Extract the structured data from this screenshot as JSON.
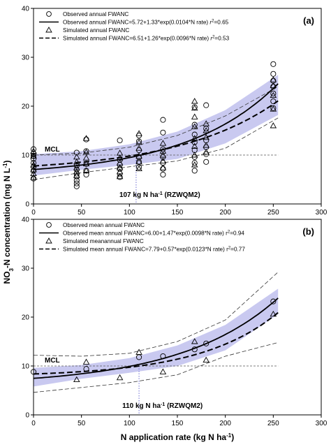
{
  "figure": {
    "ylabel_main": "NO",
    "ylabel_sub": "3",
    "ylabel_rest": "-N concentration (mg N L",
    "ylabel_sup": "-1",
    "ylabel_end": ")",
    "xlabel_main": "N application rate (kg N ha",
    "xlabel_sup": "-1",
    "xlabel_end": ")"
  },
  "chart_data": [
    {
      "type": "scatter",
      "panel_label": "(a)",
      "xlim": [
        0,
        300
      ],
      "ylim": [
        0,
        40
      ],
      "xticks": [
        0,
        50,
        100,
        150,
        200,
        250,
        300
      ],
      "yticks": [
        0,
        10,
        20,
        30,
        40
      ],
      "grid": false,
      "legend_position": "top-left",
      "legend": [
        {
          "symbol": "circle",
          "label": "Observed annual FWANC"
        },
        {
          "symbol": "solid-line",
          "label": "Observed annual FWANC=5.72+1.33*exp(0.0104*N rate) ",
          "r2": "=0.65"
        },
        {
          "symbol": "triangle",
          "label": "Simulated annual FWANC"
        },
        {
          "symbol": "dashed-line",
          "label": "Simulated annual FWANC=6.51+1.26*exp(0.0096*N rate) ",
          "r2": "=0.53"
        }
      ],
      "mcl": {
        "label": "MCL",
        "y": 10
      },
      "threshold": {
        "x": 107,
        "label_main": "107 kg N ha",
        "label_sup": "-1",
        "label_end": " (RZWQM2)"
      },
      "observed": [
        [
          0,
          5.2
        ],
        [
          0,
          6.8
        ],
        [
          0,
          7.6
        ],
        [
          0,
          8.4
        ],
        [
          0,
          9.2
        ],
        [
          0,
          9.8
        ],
        [
          0,
          10.3
        ],
        [
          0,
          11.2
        ],
        [
          45,
          3.6
        ],
        [
          45,
          4.2
        ],
        [
          45,
          4.8
        ],
        [
          45,
          5.6
        ],
        [
          45,
          6.2
        ],
        [
          45,
          7.0
        ],
        [
          45,
          7.8
        ],
        [
          45,
          10.5
        ],
        [
          55,
          6.0
        ],
        [
          55,
          6.8
        ],
        [
          55,
          8.2
        ],
        [
          55,
          10.8
        ],
        [
          55,
          13.2
        ],
        [
          90,
          5.5
        ],
        [
          90,
          6.2
        ],
        [
          90,
          7.2
        ],
        [
          90,
          8.0
        ],
        [
          90,
          9.0
        ],
        [
          90,
          13.0
        ],
        [
          110,
          7.5
        ],
        [
          110,
          8.6
        ],
        [
          110,
          9.5
        ],
        [
          110,
          11.0
        ],
        [
          110,
          12.8
        ],
        [
          110,
          14.0
        ],
        [
          135,
          6.0
        ],
        [
          135,
          7.2
        ],
        [
          135,
          8.4
        ],
        [
          135,
          9.6
        ],
        [
          135,
          11.2
        ],
        [
          135,
          14.6
        ],
        [
          135,
          17.2
        ],
        [
          168,
          6.8
        ],
        [
          168,
          8.4
        ],
        [
          168,
          9.6
        ],
        [
          168,
          11.0
        ],
        [
          168,
          12.6
        ],
        [
          168,
          14.2
        ],
        [
          168,
          16.2
        ],
        [
          168,
          19.8
        ],
        [
          180,
          8.6
        ],
        [
          180,
          10.2
        ],
        [
          180,
          11.6
        ],
        [
          180,
          13.0
        ],
        [
          180,
          15.4
        ],
        [
          180,
          20.2
        ],
        [
          250,
          19.6
        ],
        [
          250,
          21.0
        ],
        [
          250,
          22.6
        ],
        [
          250,
          24.0
        ],
        [
          250,
          25.2
        ],
        [
          250,
          26.6
        ],
        [
          250,
          28.6
        ]
      ],
      "simulated": [
        [
          0,
          5.4
        ],
        [
          0,
          6.2
        ],
        [
          0,
          7.0
        ],
        [
          0,
          8.0
        ],
        [
          0,
          9.8
        ],
        [
          0,
          10.8
        ],
        [
          45,
          5.8
        ],
        [
          45,
          6.6
        ],
        [
          45,
          7.4
        ],
        [
          45,
          8.6
        ],
        [
          45,
          9.6
        ],
        [
          55,
          6.8
        ],
        [
          55,
          8.2
        ],
        [
          55,
          9.4
        ],
        [
          55,
          10.6
        ],
        [
          55,
          13.4
        ],
        [
          90,
          5.6
        ],
        [
          90,
          6.6
        ],
        [
          90,
          7.4
        ],
        [
          90,
          8.4
        ],
        [
          90,
          9.4
        ],
        [
          90,
          10.4
        ],
        [
          110,
          7.2
        ],
        [
          110,
          8.6
        ],
        [
          110,
          9.8
        ],
        [
          110,
          11.4
        ],
        [
          110,
          12.6
        ],
        [
          110,
          14.4
        ],
        [
          135,
          7.4
        ],
        [
          135,
          8.8
        ],
        [
          135,
          10.0
        ],
        [
          135,
          10.8
        ],
        [
          135,
          12.4
        ],
        [
          168,
          8.0
        ],
        [
          168,
          10.0
        ],
        [
          168,
          11.8
        ],
        [
          168,
          13.4
        ],
        [
          168,
          15.8
        ],
        [
          168,
          17.8
        ],
        [
          168,
          19.6
        ],
        [
          168,
          21.0
        ],
        [
          180,
          10.6
        ],
        [
          180,
          12.0
        ],
        [
          180,
          13.6
        ],
        [
          180,
          15.0
        ],
        [
          180,
          16.4
        ],
        [
          250,
          16.0
        ],
        [
          250,
          19.4
        ],
        [
          250,
          22.2
        ],
        [
          250,
          24.2
        ],
        [
          250,
          25.4
        ]
      ],
      "observed_fit": {
        "a": 5.72,
        "b": 1.33,
        "k": 0.0104
      },
      "simulated_fit": {
        "a": 6.51,
        "b": 1.26,
        "k": 0.0096
      },
      "band_x": [
        0,
        50,
        100,
        150,
        200,
        255
      ],
      "band_upper": [
        10.2,
        10.8,
        12.2,
        14.8,
        19.2,
        26.4
      ],
      "band_lower": [
        5.8,
        7.0,
        8.0,
        9.2,
        12.4,
        18.2
      ],
      "outer_upper": [
        10.0,
        10.4,
        11.6,
        14.0,
        18.0,
        24.0
      ],
      "outer_lower": [
        5.0,
        6.4,
        7.6,
        8.8,
        11.4,
        17.6
      ]
    },
    {
      "type": "scatter",
      "panel_label": "(b)",
      "xlim": [
        0,
        300
      ],
      "ylim": [
        0,
        40
      ],
      "xticks": [
        0,
        50,
        100,
        150,
        200,
        250,
        300
      ],
      "yticks": [
        0,
        10,
        20,
        30,
        40
      ],
      "grid": false,
      "legend_position": "top-left",
      "legend": [
        {
          "symbol": "circle",
          "label": "Observed mean annual FWANC"
        },
        {
          "symbol": "solid-line",
          "label": "Observed mean annual FWANC=6.00+1.47*exp(0.0098*N rate) r",
          "r2": "=0.94"
        },
        {
          "symbol": "triangle",
          "label": "Simulated meanannual FWANC"
        },
        {
          "symbol": "dashed-line",
          "label": "Simulated mean annual FWANC=7.79+0.57*exp(0.0123*N rate) r",
          "r2": "=0.77"
        }
      ],
      "mcl": {
        "label": "MCL",
        "y": 10
      },
      "threshold": {
        "x": 110,
        "label_main": "110 kg N ha",
        "label_sup": "-1",
        "label_end": " (RZWQM2)"
      },
      "observed": [
        [
          0,
          8.8
        ],
        [
          55,
          9.4
        ],
        [
          110,
          11.8
        ],
        [
          135,
          12.0
        ],
        [
          168,
          13.4
        ],
        [
          180,
          14.6
        ],
        [
          250,
          23.2
        ]
      ],
      "simulated": [
        [
          45,
          7.2
        ],
        [
          55,
          10.8
        ],
        [
          90,
          7.6
        ],
        [
          110,
          12.8
        ],
        [
          135,
          8.8
        ],
        [
          168,
          15.0
        ],
        [
          180,
          11.2
        ],
        [
          250,
          20.6
        ]
      ],
      "observed_fit": {
        "a": 6.0,
        "b": 1.47,
        "k": 0.0098
      },
      "simulated_fit": {
        "a": 7.79,
        "b": 0.57,
        "k": 0.0123
      },
      "band_x": [
        0,
        50,
        100,
        150,
        200,
        255
      ],
      "band_upper": [
        9.6,
        10.2,
        11.6,
        14.2,
        18.4,
        25.8
      ],
      "band_lower": [
        5.8,
        7.4,
        8.6,
        10.0,
        13.2,
        20.6
      ],
      "outer_upper": [
        12.2,
        12.0,
        12.6,
        15.0,
        19.4,
        29.2
      ],
      "outer_lower": [
        4.6,
        5.6,
        6.6,
        8.2,
        12.0,
        14.8
      ]
    }
  ]
}
